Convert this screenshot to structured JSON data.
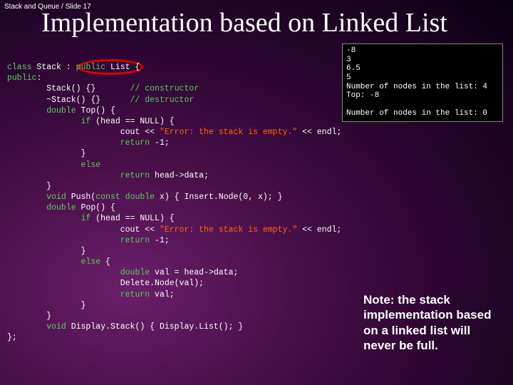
{
  "breadcrumb": "Stack and Queue / Slide 17",
  "title": "Implementation based on Linked List",
  "console": {
    "background_color": "#000000",
    "text_color": "#ffffff",
    "font_family": "Courier New",
    "lines": "-8\n3\n6.5\n5\nNumber of nodes in the list: 4\nTop: -8\n\nNumber of nodes in the list: 0"
  },
  "code": {
    "font_family": "Courier New",
    "keyword_color": "#58d058",
    "string_color": "#ff6a00",
    "default_color": "#ffffff",
    "highlight": {
      "color": "#e00000",
      "shape": "ellipse",
      "target": "public List"
    },
    "l1a": "class",
    "l1b": " Stack : ",
    "l1c": "public",
    "l1d": " List {",
    "l2a": "public",
    "l2b": ":",
    "l3a": "        Stack() {}       ",
    "l3b": "// constructor",
    "l4a": "        ~Stack() {}      ",
    "l4b": "// destructor",
    "l5a": "        ",
    "l5b": "double",
    "l5c": " Top() {",
    "l6a": "               ",
    "l6b": "if",
    "l6c": " (head == NULL) {",
    "l7a": "                       cout << ",
    "l7b": "\"Error: the stack is empty.\"",
    "l7c": " << endl;",
    "l8a": "                       ",
    "l8b": "return",
    "l8c": " -1;",
    "l9": "               }",
    "l10a": "               ",
    "l10b": "else",
    "l11a": "                       ",
    "l11b": "return",
    "l11c": " head->data;",
    "l12": "        }",
    "l13a": "        ",
    "l13b": "void",
    "l13c": " Push(",
    "l13d": "const double",
    "l13e": " x) { Insert.Node(0, x); }",
    "l14a": "        ",
    "l14b": "double",
    "l14c": " Pop() {",
    "l15a": "               ",
    "l15b": "if",
    "l15c": " (head == NULL) {",
    "l16a": "                       cout << ",
    "l16b": "\"Error: the stack is empty.\"",
    "l16c": " << endl;",
    "l17a": "                       ",
    "l17b": "return",
    "l17c": " -1;",
    "l18": "               }",
    "l19a": "               ",
    "l19b": "else",
    "l19c": " {",
    "l20a": "                       ",
    "l20b": "double",
    "l20c": " val = head->data;",
    "l21": "                       Delete.Node(val);",
    "l22a": "                       ",
    "l22b": "return",
    "l22c": " val;",
    "l23": "               }",
    "l24": "        }",
    "l25a": "        ",
    "l25b": "void",
    "l25c": " Display.Stack() { Display.List(); }",
    "l26": "};"
  },
  "note": "Note: the stack implementation based on a linked list will never be full.",
  "slide_background": {
    "type": "radial-gradient",
    "colors": [
      "#6a1f6a",
      "#4a0f4a",
      "#2a0530",
      "#0a0210"
    ]
  }
}
